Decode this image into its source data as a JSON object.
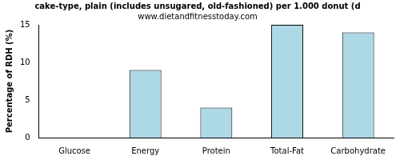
{
  "chart_data": {
    "type": "bar",
    "title": "cake-type, plain (includes unsugared, old-fashioned) per 1.000 donut (d",
    "subtitle": "www.dietandfitnesstoday.com",
    "y_label": "Percentage of RDH (%)",
    "categories": [
      "Glucose",
      "Energy",
      "Protein",
      "Total-Fat",
      "Carbohydrate"
    ],
    "values": [
      0,
      9,
      4,
      15,
      14
    ],
    "color": "#add8e6",
    "ylim": [
      0,
      15
    ],
    "yticks": [
      0,
      5,
      10,
      15
    ],
    "grid": false
  }
}
